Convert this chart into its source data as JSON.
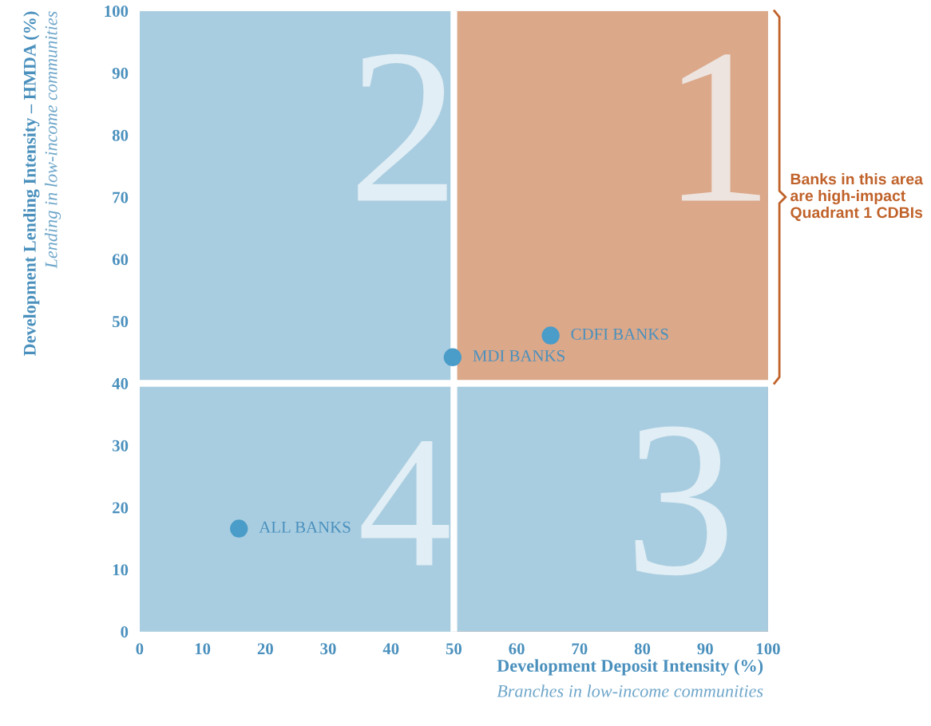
{
  "chart_data": {
    "type": "scatter",
    "xlabel": "Development Deposit Intensity (%)\nBranches in low-income communities",
    "ylabel": "Development Lending Intensity – HMDA (%)\nLending in low-income communities",
    "x": [
      15.8,
      49.8,
      65.4
    ],
    "series": [
      {
        "color": "#4a9cc9",
        "values": [
          16.6,
          44.2,
          47.7
        ]
      }
    ],
    "marker": "circle",
    "xlim": [
      0,
      100
    ],
    "ylim": [
      0,
      100
    ],
    "xticks": [
      0,
      10,
      20,
      30,
      40,
      50,
      60,
      70,
      80,
      90,
      100
    ],
    "yticks": [
      0,
      10,
      20,
      30,
      40,
      50,
      60,
      70,
      80,
      90,
      100
    ],
    "grid": false,
    "bands": [
      {
        "axis": "y",
        "from": 0,
        "to": 100,
        "color": "#a9cde0"
      },
      {
        "axis": "x",
        "from": 50,
        "to": 100,
        "color": "#dba88a"
      },
      {
        "axis": "y",
        "from": 0,
        "to": 40,
        "color": "#a9cde0"
      }
    ],
    "ref_lines": [
      {
        "axis": "x",
        "value": 50,
        "color": "#ffffff"
      },
      {
        "axis": "y",
        "value": 40,
        "color": "#ffffff"
      }
    ],
    "annotations": [
      {
        "text": "ALL BANKS",
        "x": 15.8,
        "y": 16.6
      },
      {
        "text": "MDI BANKS",
        "x": 49.8,
        "y": 44.2
      },
      {
        "text": "CDFI BANKS",
        "x": 65.4,
        "y": 47.7
      },
      "1",
      "2",
      "3",
      "4",
      "Banks in this area are high-impact Quadrant 1 CDBIs"
    ]
  }
}
